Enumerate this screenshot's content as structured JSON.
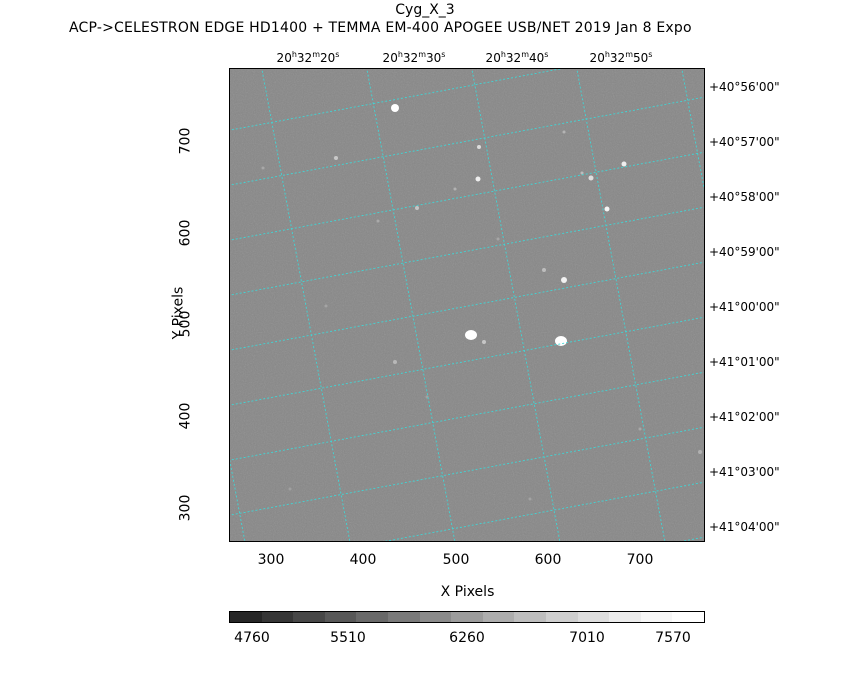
{
  "header": {
    "title": "Cyg_X_3",
    "subtitle": "ACP->CELESTRON EDGE HD1400 + TEMMA EM-400 APOGEE USB/NET   2019 Jan  8    Expo"
  },
  "axes": {
    "xlabel": "X Pixels",
    "ylabel": "Y Pixels",
    "x_ticks": [
      "300",
      "400",
      "500",
      "600",
      "700"
    ],
    "y_ticks": [
      "300",
      "400",
      "500",
      "600",
      "700"
    ],
    "xlim": [
      257,
      770
    ],
    "ylim": [
      260,
      772
    ]
  },
  "ra_ticks": [
    {
      "h": "20",
      "m": "32",
      "s": "20"
    },
    {
      "h": "20",
      "m": "32",
      "s": "30"
    },
    {
      "h": "20",
      "m": "32",
      "s": "40"
    },
    {
      "h": "20",
      "m": "32",
      "s": "50"
    }
  ],
  "dec_ticks": [
    "+40°56'00\"",
    "+40°57'00\"",
    "+40°58'00\"",
    "+40°59'00\"",
    "+41°00'00\"",
    "+41°01'00\"",
    "+41°02'00\"",
    "+41°03'00\"",
    "+41°04'00\""
  ],
  "colorbar": {
    "labels": [
      "4760",
      "5510",
      "6260",
      "7010",
      "7570"
    ]
  },
  "colors": {
    "grid": "#3fd6d6",
    "sky": "#878787"
  }
}
